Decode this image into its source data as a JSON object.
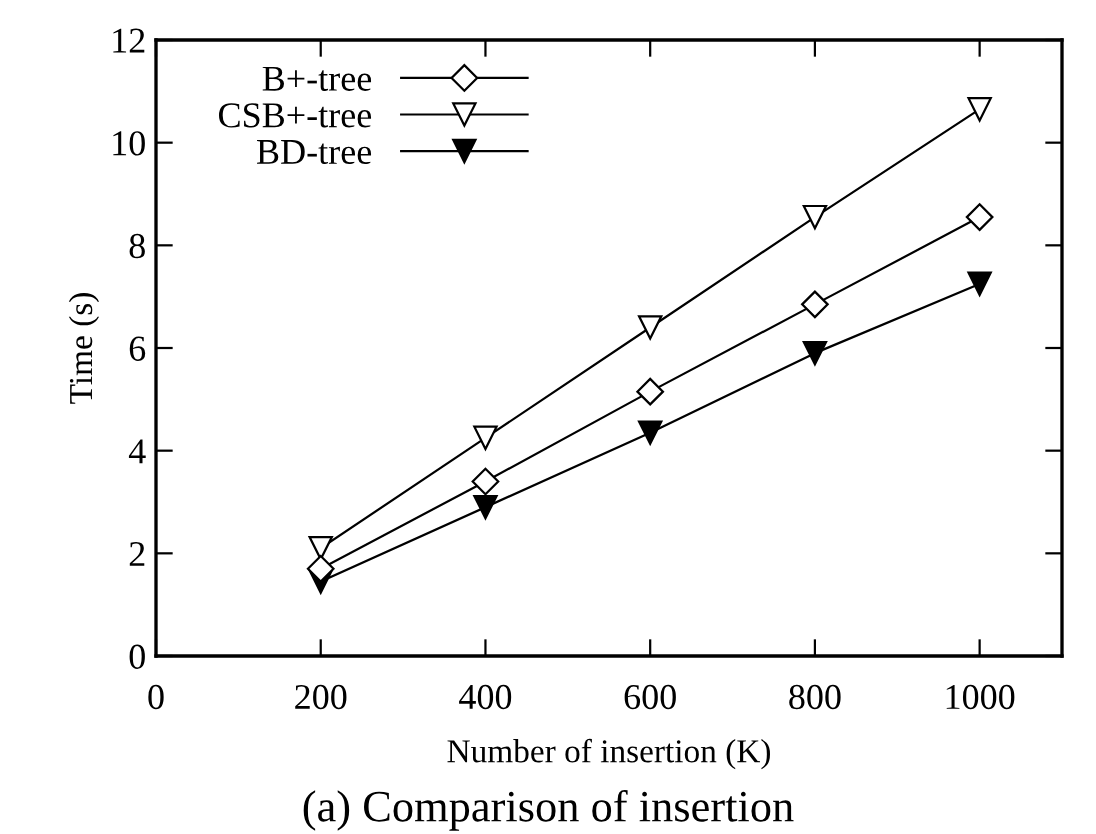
{
  "chart_data": {
    "type": "line",
    "xlabel": "Number of insertion (K)",
    "ylabel": "Time (s)",
    "x": [
      200,
      400,
      600,
      800,
      1000
    ],
    "series": [
      {
        "name": "B+-tree",
        "color": "#ffffff",
        "marker": "diamond",
        "values": [
          1.7,
          3.4,
          5.15,
          6.85,
          8.55
        ]
      },
      {
        "name": "CSB+-tree",
        "color": "#ffffff",
        "marker": "triangle",
        "values": [
          2.1,
          4.25,
          6.4,
          8.55,
          10.65
        ]
      },
      {
        "name": "BD-tree",
        "color": "#000000",
        "marker": "triangle",
        "values": [
          1.45,
          2.9,
          4.35,
          5.9,
          7.25
        ]
      }
    ],
    "xlim": [
      0,
      1100
    ],
    "xticks": [
      0,
      200,
      400,
      600,
      800,
      1000
    ],
    "ylim": [
      0,
      12
    ],
    "yticks": [
      0,
      2,
      4,
      6,
      8,
      10,
      12
    ],
    "grid": false,
    "legend": "top left",
    "line_style": "solid",
    "annotations": [
      "(a) Comparison of insertion"
    ]
  }
}
